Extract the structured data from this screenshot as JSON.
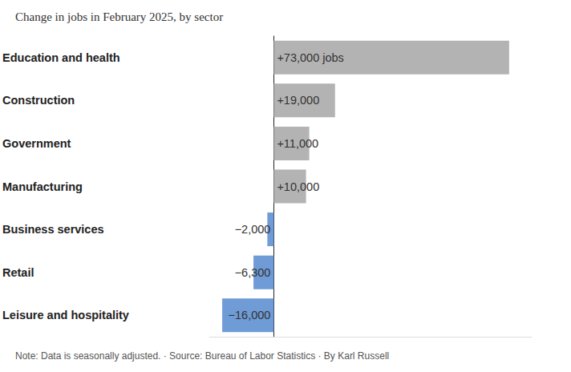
{
  "chart_data": {
    "type": "bar",
    "orientation": "horizontal",
    "title": "Change in jobs in February 2025, by sector",
    "note": "Note: Data is seasonally adjusted. · Source: Bureau of Labor Statistics · By Karl Russell",
    "categories": [
      "Education and health",
      "Construction",
      "Government",
      "Manufacturing",
      "Business services",
      "Retail",
      "Leisure and hospitality"
    ],
    "values": [
      73000,
      19000,
      11000,
      10000,
      -2000,
      -6300,
      -16000
    ],
    "value_labels": [
      "+73,000 jobs",
      "+19,000",
      "+11,000",
      "+10,000",
      "−2,000",
      "−6,300",
      "−16,000"
    ],
    "colors": [
      "#b3b3b3",
      "#b3b3b3",
      "#b3b3b3",
      "#b3b3b3",
      "#6f9bd6",
      "#6f9bd6",
      "#6f9bd6"
    ],
    "xlim": [
      -20000,
      80000
    ],
    "data_labels": true,
    "tick_labels": "y",
    "grid": false
  }
}
